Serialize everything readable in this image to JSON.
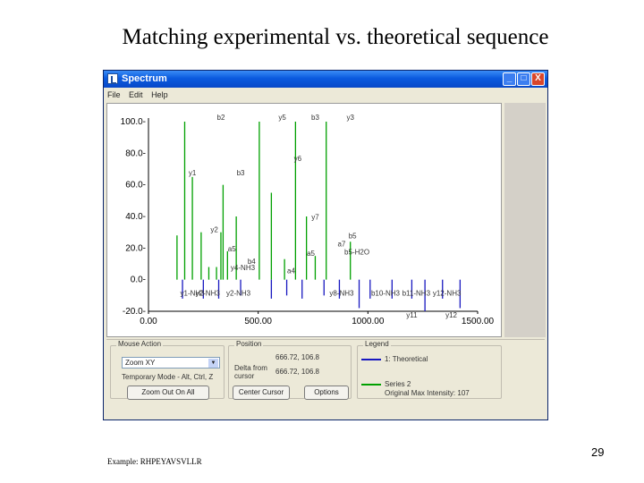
{
  "slide": {
    "title": "Matching experimental vs. theoretical sequence",
    "example": "Example: RHPEYAVSVLLR",
    "page_number": "29"
  },
  "window": {
    "title": "Spectrum",
    "menu": [
      "File",
      "Edit",
      "Help"
    ],
    "controls": {
      "minimize": "_",
      "maximize": "□",
      "close": "X"
    }
  },
  "colors": {
    "experimental": "#1818c0",
    "theoretical": "#00a000",
    "window_titlebar": "#0a5adf"
  },
  "icons": [
    "spectrum-app-icon",
    "dropdown-arrow-icon"
  ],
  "chart_data": {
    "type": "bar",
    "xlim": [
      0,
      1500
    ],
    "ylim": [
      -20,
      100
    ],
    "x_ticks": [
      "0.00",
      "500.00",
      "1000.00",
      "1500.00"
    ],
    "y_ticks": [
      "100.0-",
      "80.0-",
      "60.0-",
      "40.0-",
      "20.0-",
      "0.0-",
      "-20.0-"
    ],
    "series": [
      {
        "name": "Series 2",
        "color": "#00a000",
        "peaks": [
          {
            "x": 130,
            "y": 28
          },
          {
            "x": 165,
            "y": 100
          },
          {
            "x": 200,
            "y": 65
          },
          {
            "x": 240,
            "y": 30
          },
          {
            "x": 275,
            "y": 8
          },
          {
            "x": 310,
            "y": 8
          },
          {
            "x": 330,
            "y": 30
          },
          {
            "x": 340,
            "y": 60
          },
          {
            "x": 360,
            "y": 18
          },
          {
            "x": 400,
            "y": 40
          },
          {
            "x": 505,
            "y": 100
          },
          {
            "x": 560,
            "y": 55
          },
          {
            "x": 620,
            "y": 13
          },
          {
            "x": 670,
            "y": 100
          },
          {
            "x": 720,
            "y": 40
          },
          {
            "x": 760,
            "y": 15
          },
          {
            "x": 810,
            "y": 100
          },
          {
            "x": 920,
            "y": 24
          }
        ]
      },
      {
        "name": "1: Theoretical",
        "color": "#1818c0",
        "peaks": [
          {
            "x": 155,
            "y": -12
          },
          {
            "x": 250,
            "y": -12
          },
          {
            "x": 320,
            "y": -12
          },
          {
            "x": 420,
            "y": -10
          },
          {
            "x": 560,
            "y": -12
          },
          {
            "x": 630,
            "y": -10
          },
          {
            "x": 700,
            "y": -12
          },
          {
            "x": 800,
            "y": -10
          },
          {
            "x": 870,
            "y": -12
          },
          {
            "x": 960,
            "y": -18
          },
          {
            "x": 1010,
            "y": -12
          },
          {
            "x": 1110,
            "y": -12
          },
          {
            "x": 1200,
            "y": -12
          },
          {
            "x": 1260,
            "y": -20
          },
          {
            "x": 1340,
            "y": -12
          },
          {
            "x": 1420,
            "y": -18
          }
        ]
      }
    ],
    "annotations": [
      {
        "text": "b2",
        "x": 330,
        "y": 101
      },
      {
        "text": "y5",
        "x": 610,
        "y": 101
      },
      {
        "text": "b3",
        "x": 760,
        "y": 101
      },
      {
        "text": "y3",
        "x": 920,
        "y": 101
      },
      {
        "text": "y6",
        "x": 680,
        "y": 75
      },
      {
        "text": "y1",
        "x": 200,
        "y": 66
      },
      {
        "text": "b3",
        "x": 420,
        "y": 66
      },
      {
        "text": "y7",
        "x": 760,
        "y": 38
      },
      {
        "text": "y2",
        "x": 300,
        "y": 30
      },
      {
        "text": "b5",
        "x": 930,
        "y": 26
      },
      {
        "text": "a7",
        "x": 880,
        "y": 21
      },
      {
        "text": "b5-H2O",
        "x": 950,
        "y": 16
      },
      {
        "text": "a5",
        "x": 380,
        "y": 18
      },
      {
        "text": "a5",
        "x": 740,
        "y": 15
      },
      {
        "text": "b4",
        "x": 470,
        "y": 10
      },
      {
        "text": "y4-NH3",
        "x": 430,
        "y": 6
      },
      {
        "text": "a4",
        "x": 650,
        "y": 4
      },
      {
        "text": "y1-NH3",
        "x": 200,
        "y": -10
      },
      {
        "text": "y2-NH3",
        "x": 270,
        "y": -10
      },
      {
        "text": "y2-NH3",
        "x": 410,
        "y": -10
      },
      {
        "text": "y8-NH3",
        "x": 880,
        "y": -10
      },
      {
        "text": "b10-NH3",
        "x": 1080,
        "y": -10
      },
      {
        "text": "b11-NH3",
        "x": 1220,
        "y": -10
      },
      {
        "text": "y12-NH3",
        "x": 1360,
        "y": -10
      },
      {
        "text": "y11",
        "x": 1200,
        "y": -24
      },
      {
        "text": "y12",
        "x": 1380,
        "y": -24
      }
    ]
  },
  "controls": {
    "mouse_action": {
      "label": "Mouse Action",
      "selected": "Zoom XY",
      "hint": "Temporary Mode - Alt, Ctrl, Z"
    },
    "zoom_out_button": "Zoom Out On All",
    "position": {
      "label": "Position",
      "coords": "666.72, 106.8",
      "delta_label": "Delta from cursor",
      "delta": "666.72, 106.8"
    },
    "center_cursor_button": "Center Cursor",
    "options_button": "Options",
    "legend": {
      "label": "Legend",
      "item1": "1: Theoretical",
      "item2": "Series 2",
      "item2_sub": "Original Max Intensity: 107"
    }
  }
}
